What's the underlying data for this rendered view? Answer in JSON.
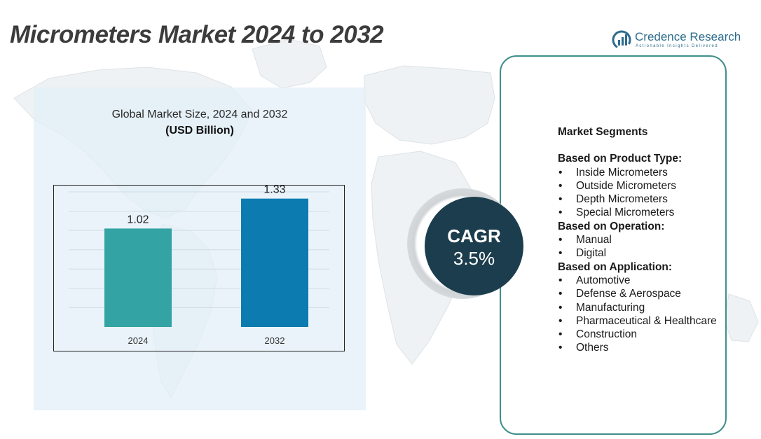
{
  "header": {
    "title": "Micrometers Market 2024 to 2032",
    "logo_name": "Credence Research",
    "logo_tagline": "Actionable Insights Delivered"
  },
  "chart_data": {
    "type": "bar",
    "title": "Global Market Size, 2024 and 2032",
    "unit": "(USD Billion)",
    "categories": [
      "2024",
      "2032"
    ],
    "values": [
      1.02,
      1.33
    ],
    "data_labels": [
      "1.02",
      "1.33"
    ],
    "colors": [
      "#33a3a3",
      "#0c7cb0"
    ],
    "ylim": [
      0,
      1.4
    ],
    "grid": true,
    "xlabel": "",
    "ylabel": ""
  },
  "cagr": {
    "label": "CAGR",
    "value": "3.5%"
  },
  "segments": {
    "heading": "Market Segments",
    "groups": [
      {
        "title": "Based on Product Type:",
        "items": [
          "Inside Micrometers",
          "Outside Micrometers",
          "Depth Micrometers",
          "Special Micrometers"
        ]
      },
      {
        "title": "Based on Operation:",
        "items": [
          "Manual",
          "Digital"
        ]
      },
      {
        "title": "Based on Application:",
        "items": [
          "Automotive",
          "Defense & Aerospace",
          "Manufacturing",
          "Pharmaceutical & Healthcare",
          "Construction",
          "Others"
        ]
      }
    ]
  },
  "colors": {
    "accent_teal": "#3f8f8a",
    "cagr_fill": "#1c3d4e",
    "panel_fill": "#e2eff8",
    "logo_blue": "#2c6c8c"
  }
}
